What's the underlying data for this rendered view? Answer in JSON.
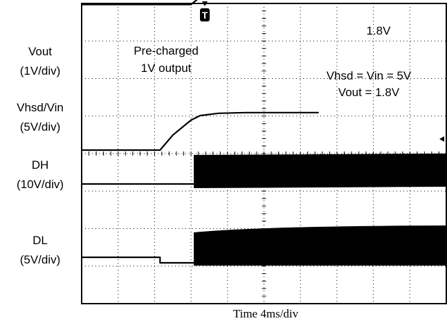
{
  "chart_data": {
    "type": "line",
    "title": "",
    "xlabel_prefix": "Time ",
    "xlabel_scale": "4ms/div",
    "x_divisions": 10,
    "y_divisions": 8,
    "trigger_marker": "T",
    "channels": [
      {
        "name": "Vout",
        "scale": "(1V/div)"
      },
      {
        "name": "Vhsd/Vin",
        "scale": "(5V/div)"
      },
      {
        "name": "DH",
        "scale": "(10V/div)"
      },
      {
        "name": "DL",
        "scale": "(5V/div)"
      }
    ],
    "series": [
      {
        "name": "Vout",
        "unit": "V",
        "values_per_div": 1,
        "points": [
          [
            0,
            1.0
          ],
          [
            12,
            1.0
          ],
          [
            13,
            1.2
          ],
          [
            14,
            1.55
          ],
          [
            15,
            1.8
          ],
          [
            26,
            1.8
          ]
        ]
      },
      {
        "name": "Vhsd/Vin",
        "unit": "V",
        "values_per_div": 5,
        "points": [
          [
            0,
            0
          ],
          [
            8.6,
            0
          ],
          [
            10,
            2.0
          ],
          [
            12,
            4.0
          ],
          [
            13,
            4.6
          ],
          [
            15,
            4.9
          ],
          [
            18,
            5.0
          ],
          [
            26,
            5.0
          ]
        ]
      },
      {
        "name": "DH",
        "unit": "V",
        "switching_start_ms": 12.3
      },
      {
        "name": "DL",
        "unit": "V",
        "switching_start_ms": 12.3,
        "step_down_ms": 8.6
      }
    ],
    "annotations": [
      {
        "text": "Pre-charged"
      },
      {
        "text": "1V output"
      },
      {
        "text": "1.8V"
      },
      {
        "text": "Vhsd = Vin = 5V"
      },
      {
        "text": "Vout = 1.8V"
      }
    ]
  }
}
